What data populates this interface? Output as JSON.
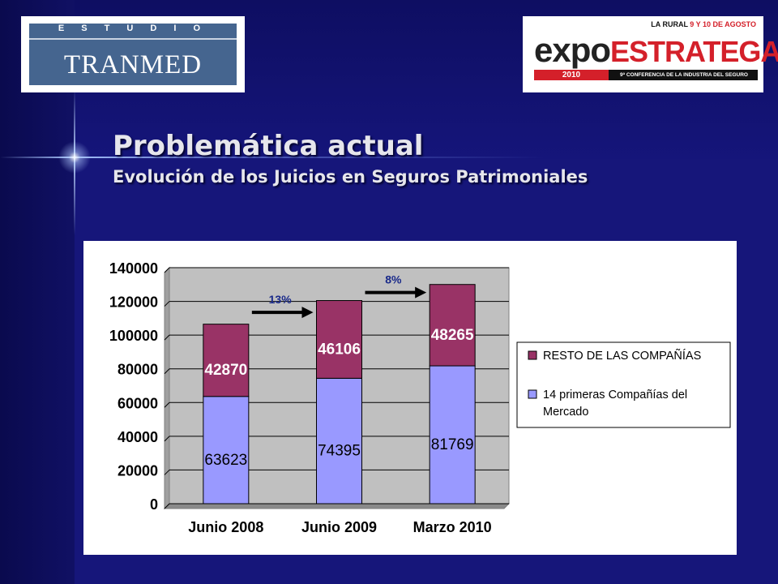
{
  "slide": {
    "title": "Problemática actual",
    "subtitle": "Evolución de los Juicios en Seguros Patrimoniales"
  },
  "logos": {
    "left": {
      "estudio": "E S T U D I O",
      "name": "TRANMED"
    },
    "right": {
      "top_a": "LA RURAL ",
      "top_b": "9 Y 10 DE AGOSTO",
      "word_a": "expo",
      "word_b": "ESTRATEGAS",
      "year": "2010",
      "conf": "9ª CONFERENCIA DE LA INDUSTRIA DEL SEGURO"
    }
  },
  "chart_data": {
    "type": "bar",
    "stacked": true,
    "categories": [
      "Junio 2008",
      "Junio 2009",
      "Marzo 2010"
    ],
    "series": [
      {
        "name": "14 primeras Compañías del Mercado",
        "values": [
          63623,
          74395,
          81769
        ],
        "color": "#9999ff"
      },
      {
        "name": "RESTO DE LAS COMPAÑÍAS",
        "values": [
          42870,
          46106,
          48265
        ],
        "color": "#993366"
      }
    ],
    "ylim": [
      0,
      140000
    ],
    "yticks": [
      "140000",
      "120000",
      "100000",
      "80000",
      "60000",
      "40000",
      "20000",
      "0"
    ],
    "grid": true,
    "plot_background": "#c0c0c0",
    "legend_position": "right",
    "annotations": [
      {
        "text": "13%",
        "from": "Junio 2008",
        "to": "Junio 2009"
      },
      {
        "text": "8%",
        "from": "Junio 2009",
        "to": "Marzo 2010"
      }
    ]
  }
}
